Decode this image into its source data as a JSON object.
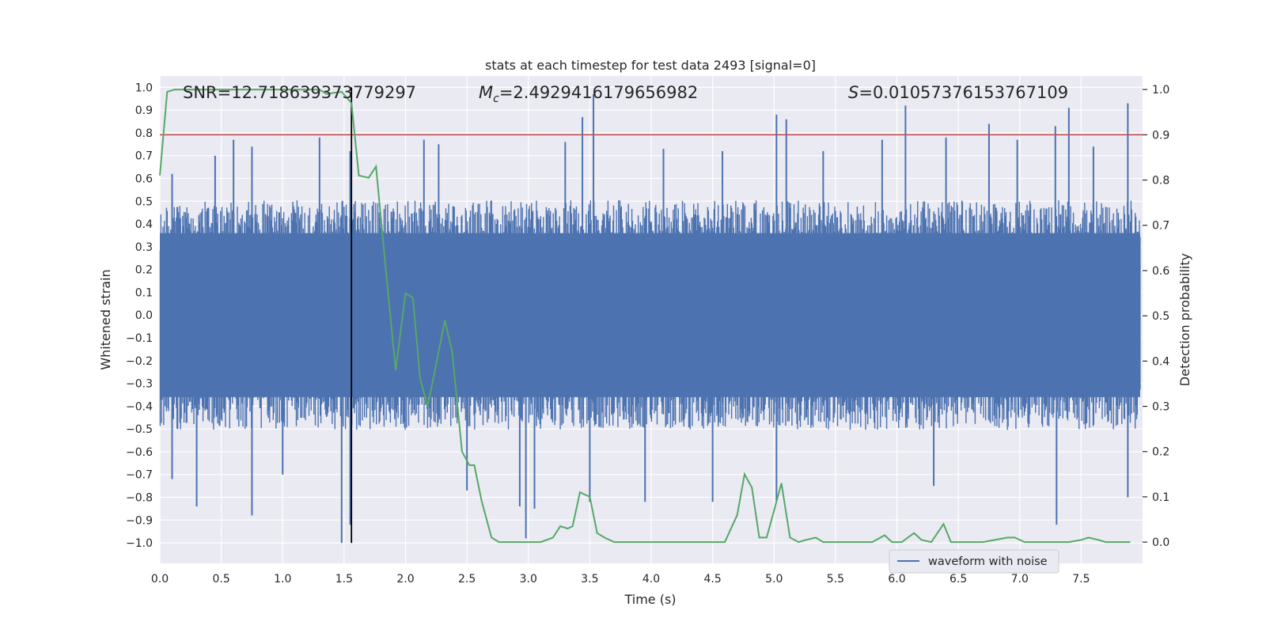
{
  "chart_data": {
    "type": "line",
    "title": "stats at each timestep for test data 2493 [signal=0]",
    "xlabel": "Time (s)",
    "ylabel_left": "Whitened strain",
    "ylabel_right": "Detection probability",
    "xlim": [
      0.0,
      8.0
    ],
    "ylim_left": [
      -1.09,
      1.05
    ],
    "ylim_right": [
      -0.047,
      1.03
    ],
    "x_ticks": [
      "0.0",
      "0.5",
      "1.0",
      "1.5",
      "2.0",
      "2.5",
      "3.0",
      "3.5",
      "4.0",
      "4.5",
      "5.0",
      "5.5",
      "6.0",
      "6.5",
      "7.0",
      "7.5"
    ],
    "y_left_ticks": [
      "1.0",
      "0.9",
      "0.8",
      "0.7",
      "0.6",
      "0.5",
      "0.4",
      "0.3",
      "0.2",
      "0.1",
      "0.0",
      "−0.1",
      "−0.2",
      "−0.3",
      "−0.4",
      "−0.5",
      "−0.6",
      "−0.7",
      "−0.8",
      "−0.9",
      "−1.0"
    ],
    "y_right_ticks": [
      "1.0",
      "0.9",
      "0.8",
      "0.7",
      "0.6",
      "0.5",
      "0.4",
      "0.3",
      "0.2",
      "0.1",
      "0.0"
    ],
    "grid": true,
    "legend_position": "lower-right",
    "annotations": {
      "snr": "SNR=12.718639373779297",
      "mc_symbol": "M",
      "mc_sub": "c",
      "mc_value": "=2.4929416179656982",
      "s_symbol": "S",
      "s_value": "=0.010573761537671​09"
    },
    "threshold_right": 0.9,
    "marker_time": 1.56,
    "series": [
      {
        "name": "waveform with noise",
        "axis": "left",
        "style": "noise-band",
        "color": "#4c72b0",
        "band_upper_typical": 0.45,
        "band_lower_typical": -0.45,
        "peak_positive": [
          [
            0.1,
            0.62
          ],
          [
            0.45,
            0.7
          ],
          [
            0.6,
            0.77
          ],
          [
            0.75,
            0.74
          ],
          [
            1.3,
            0.78
          ],
          [
            1.55,
            0.72
          ],
          [
            2.15,
            0.77
          ],
          [
            2.27,
            0.75
          ],
          [
            3.3,
            0.76
          ],
          [
            3.44,
            0.87
          ],
          [
            3.53,
            0.97
          ],
          [
            4.1,
            0.73
          ],
          [
            4.58,
            0.72
          ],
          [
            5.02,
            0.88
          ],
          [
            5.1,
            0.86
          ],
          [
            5.4,
            0.72
          ],
          [
            5.88,
            0.77
          ],
          [
            6.07,
            0.92
          ],
          [
            6.4,
            0.78
          ],
          [
            6.75,
            0.84
          ],
          [
            6.98,
            0.77
          ],
          [
            7.29,
            0.83
          ],
          [
            7.4,
            0.91
          ],
          [
            7.6,
            0.74
          ],
          [
            7.88,
            0.93
          ]
        ],
        "peak_negative": [
          [
            0.1,
            -0.72
          ],
          [
            0.3,
            -0.84
          ],
          [
            0.75,
            -0.88
          ],
          [
            1.0,
            -0.7
          ],
          [
            1.48,
            -1.0
          ],
          [
            1.55,
            -0.92
          ],
          [
            2.5,
            -0.77
          ],
          [
            2.93,
            -0.84
          ],
          [
            2.98,
            -0.98
          ],
          [
            3.05,
            -0.85
          ],
          [
            3.5,
            -0.82
          ],
          [
            3.95,
            -0.82
          ],
          [
            4.5,
            -0.82
          ],
          [
            5.02,
            -0.82
          ],
          [
            6.3,
            -0.75
          ],
          [
            7.3,
            -0.92
          ],
          [
            7.88,
            -0.8
          ]
        ]
      },
      {
        "name": "detection probability",
        "axis": "right",
        "color": "#55a868",
        "x": [
          0.0,
          0.06,
          0.12,
          0.2,
          0.4,
          0.6,
          0.8,
          1.0,
          1.2,
          1.3,
          1.36,
          1.42,
          1.48,
          1.56,
          1.62,
          1.7,
          1.76,
          1.84,
          1.92,
          2.0,
          2.06,
          2.12,
          2.18,
          2.24,
          2.32,
          2.38,
          2.46,
          2.52,
          2.56,
          2.62,
          2.7,
          2.76,
          2.9,
          3.0,
          3.1,
          3.2,
          3.26,
          3.32,
          3.36,
          3.42,
          3.5,
          3.56,
          3.62,
          3.7,
          3.8,
          3.9,
          4.0,
          4.2,
          4.4,
          4.6,
          4.7,
          4.76,
          4.82,
          4.88,
          4.94,
          5.0,
          5.06,
          5.13,
          5.2,
          5.26,
          5.34,
          5.4,
          5.5,
          5.6,
          5.8,
          5.9,
          5.96,
          6.04,
          6.14,
          6.2,
          6.28,
          6.38,
          6.44,
          6.52,
          6.7,
          6.9,
          6.96,
          7.04,
          7.2,
          7.4,
          7.5,
          7.56,
          7.64,
          7.7,
          7.8,
          7.9
        ],
        "y": [
          0.81,
          0.995,
          1.0,
          1.0,
          1.0,
          1.0,
          1.0,
          1.0,
          1.0,
          1.0,
          0.99,
          0.993,
          0.995,
          0.97,
          0.81,
          0.805,
          0.83,
          0.6,
          0.38,
          0.55,
          0.54,
          0.36,
          0.3,
          0.38,
          0.49,
          0.42,
          0.2,
          0.17,
          0.17,
          0.09,
          0.01,
          0.0,
          0.0,
          0.0,
          0.0,
          0.01,
          0.035,
          0.03,
          0.035,
          0.11,
          0.1,
          0.02,
          0.01,
          0.0,
          0.0,
          0.0,
          0.0,
          0.0,
          0.0,
          0.0,
          0.06,
          0.15,
          0.12,
          0.01,
          0.01,
          0.07,
          0.13,
          0.01,
          0.0,
          0.005,
          0.01,
          0.0,
          0.0,
          0.0,
          0.0,
          0.015,
          0.0,
          0.0,
          0.02,
          0.005,
          0.0,
          0.04,
          0.0,
          0.0,
          0.0,
          0.01,
          0.01,
          0.0,
          0.0,
          0.0,
          0.005,
          0.01,
          0.005,
          0.0,
          0.0,
          0.0
        ]
      }
    ]
  }
}
